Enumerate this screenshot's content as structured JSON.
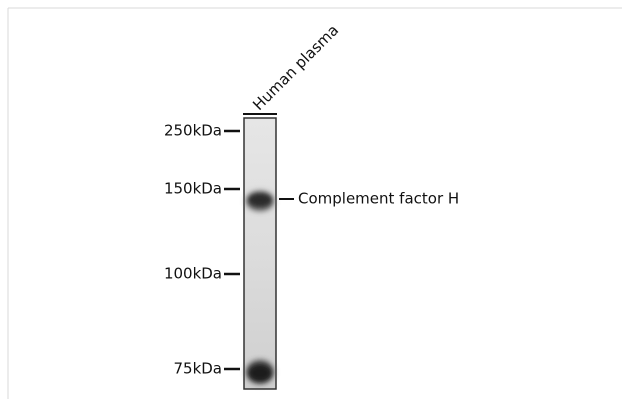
{
  "lane": {
    "label": "Human plasma"
  },
  "markers": [
    {
      "label": "250kDa"
    },
    {
      "label": "150kDa"
    },
    {
      "label": "100kDa"
    },
    {
      "label": "75kDa"
    }
  ],
  "band": {
    "label": "Complement factor H"
  }
}
